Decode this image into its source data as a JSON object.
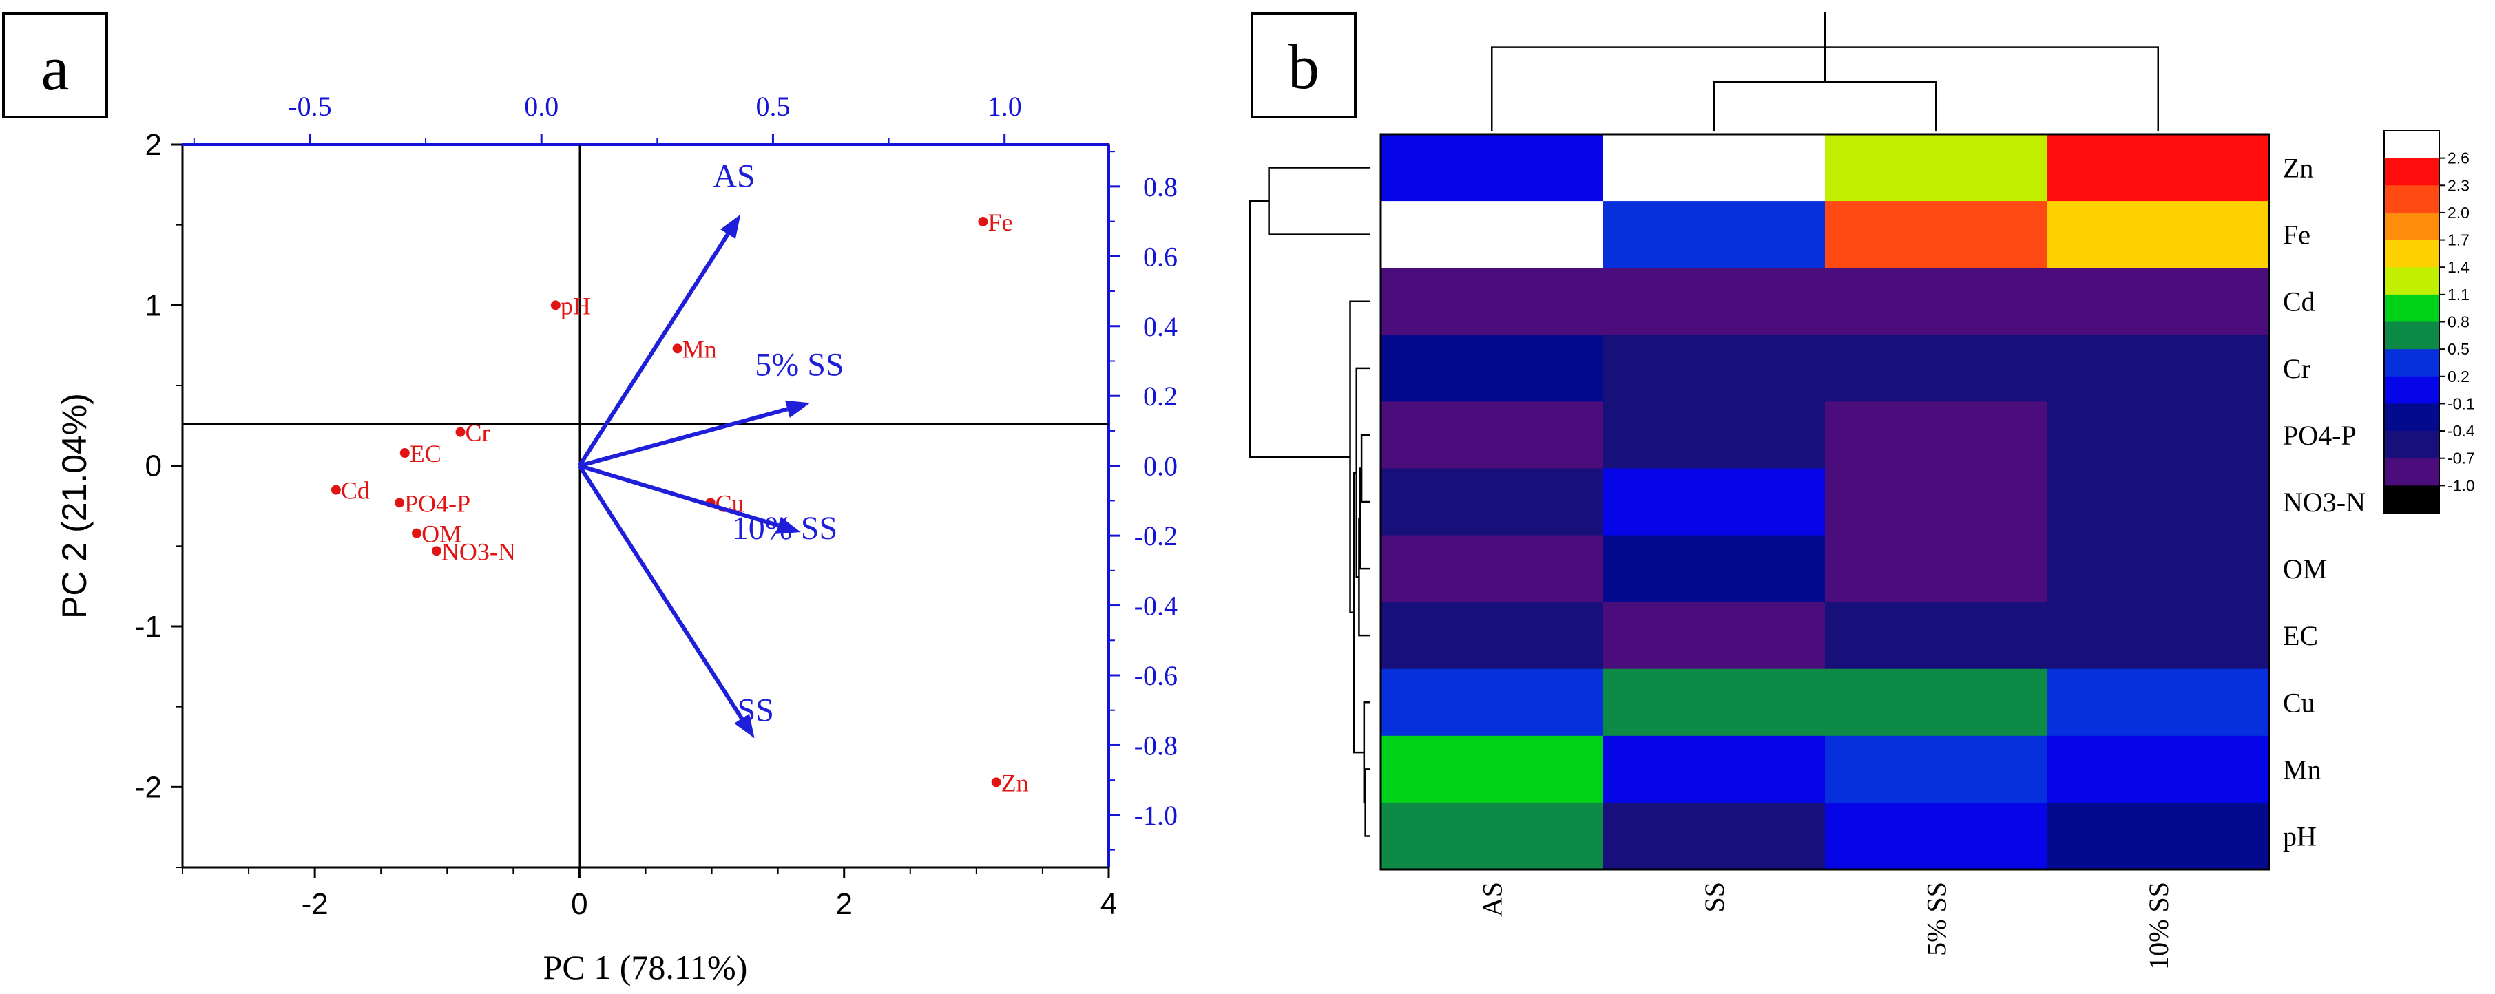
{
  "panel_a": {
    "label": "a",
    "xlabel": "PC 1 (78.11%)",
    "ylabel": "PC 2 (21.04%)"
  },
  "panel_b": {
    "label": "b"
  },
  "colors": {
    "axis": "#000000",
    "secondary_axis": "#1414d8",
    "score_points": "#e11414",
    "loading_arrows": "#1f1fd9"
  },
  "chart_data": [
    {
      "type": "scatter",
      "title": "a",
      "xlabel": "PC 1 (78.11%)",
      "ylabel": "PC 2 (21.04%)",
      "xlim": [
        -3,
        4
      ],
      "ylim": [
        -2.5,
        2
      ],
      "x_ticks": [
        -2,
        0,
        2,
        4
      ],
      "y_ticks": [
        -2,
        -1,
        0,
        1,
        2
      ],
      "secondary_x": {
        "lim": [
          -0.775,
          1.225
        ],
        "ticks": [
          -0.5,
          0.0,
          0.5,
          1.0
        ],
        "tick_labels": [
          "-0.5",
          "0.0",
          "0.5",
          "1.0"
        ]
      },
      "secondary_y": {
        "lim": [
          -1.15,
          0.92
        ],
        "ticks": [
          0.8,
          0.6,
          0.4,
          0.2,
          0.0,
          -0.2,
          -0.4,
          -0.6,
          -0.8,
          -1.0
        ],
        "tick_labels": [
          "0.8",
          "0.6",
          "0.4",
          "0.2",
          "0.0",
          "-0.2",
          "-0.4",
          "-0.6",
          "-0.8",
          "-1.0"
        ]
      },
      "scores": [
        {
          "label": "Fe",
          "x": 3.05,
          "y": 1.52
        },
        {
          "label": "pH",
          "x": -0.18,
          "y": 1.0
        },
        {
          "label": "Mn",
          "x": 0.74,
          "y": 0.73
        },
        {
          "label": "Cr",
          "x": -0.9,
          "y": 0.21
        },
        {
          "label": "EC",
          "x": -1.32,
          "y": 0.08
        },
        {
          "label": "Cd",
          "x": -1.84,
          "y": -0.15
        },
        {
          "label": "PO4-P",
          "x": -1.36,
          "y": -0.23
        },
        {
          "label": "OM",
          "x": -1.23,
          "y": -0.42
        },
        {
          "label": "NO3-N",
          "x": -1.08,
          "y": -0.53
        },
        {
          "label": "Cu",
          "x": 0.99,
          "y": -0.23
        },
        {
          "label": "Zn",
          "x": 3.15,
          "y": -1.97
        }
      ],
      "loadings": [
        {
          "label": "AS",
          "x": 0.43,
          "y": 0.72
        },
        {
          "label": "5% SS",
          "x": 0.58,
          "y": 0.18
        },
        {
          "label": "10% SS",
          "x": 0.56,
          "y": -0.19
        },
        {
          "label": "SS",
          "x": 0.46,
          "y": -0.78
        }
      ]
    },
    {
      "type": "heatmap",
      "title": "b",
      "columns": [
        "AS",
        "SS",
        "5% SS",
        "10% SS"
      ],
      "rows": [
        "Zn",
        "Fe",
        "Cd",
        "Cr",
        "PO4-P",
        "NO3-N",
        "OM",
        "EC",
        "Cu",
        "Mn",
        "pH"
      ],
      "values": [
        [
          0.1,
          2.6,
          1.2,
          2.3
        ],
        [
          2.6,
          0.2,
          2.0,
          1.6
        ],
        [
          -0.8,
          -0.8,
          -0.8,
          -0.8
        ],
        [
          -0.4,
          -0.6,
          -0.6,
          -0.6
        ],
        [
          -0.8,
          -0.6,
          -0.8,
          -0.6
        ],
        [
          -0.6,
          0.1,
          -0.8,
          -0.6
        ],
        [
          -0.8,
          -0.4,
          -0.8,
          -0.6
        ],
        [
          -0.6,
          -0.8,
          -0.6,
          -0.6
        ],
        [
          0.2,
          0.6,
          0.6,
          0.2
        ],
        [
          1.0,
          0.1,
          0.2,
          0.1
        ],
        [
          0.6,
          -0.6,
          0.1,
          -0.4
        ]
      ],
      "color_scale": {
        "ticks": [
          2.6,
          2.3,
          2.0,
          1.7,
          1.4,
          1.1,
          0.8,
          0.5,
          0.2,
          -0.1,
          -0.4,
          -0.7,
          -1.0
        ],
        "tick_labels": [
          "2.6",
          "2.3",
          "2.0",
          "1.7",
          "1.4",
          "1.1",
          "0.8",
          "0.5",
          "0.2",
          "-0.1",
          "-0.4",
          "-0.7",
          "-1.0"
        ],
        "bins": [
          {
            "from": 2.6,
            "color": "#ffffff"
          },
          {
            "from": 2.3,
            "color": "#ff0d0d"
          },
          {
            "from": 2.0,
            "color": "#ff4a14"
          },
          {
            "from": 1.7,
            "color": "#ff8c0a"
          },
          {
            "from": 1.4,
            "color": "#ffd000"
          },
          {
            "from": 1.1,
            "color": "#c2ef00"
          },
          {
            "from": 0.8,
            "color": "#00d21a"
          },
          {
            "from": 0.5,
            "color": "#0c8a46"
          },
          {
            "from": 0.2,
            "color": "#0530dc"
          },
          {
            "from": -0.1,
            "color": "#0505e8"
          },
          {
            "from": -0.4,
            "color": "#040a8e"
          },
          {
            "from": -0.7,
            "color": "#170f7a"
          },
          {
            "from": -1.0,
            "color": "#4c0d7c"
          },
          {
            "from": -99,
            "color": "#000000"
          }
        ]
      },
      "col_dendrogram": [
        {
          "a": 1,
          "b": 2,
          "h": 0.35
        },
        {
          "a": 0,
          "b": 3,
          "h": 0.6
        },
        {
          "a": 5,
          "b": 4,
          "h": 0.85
        }
      ],
      "row_dendrogram": [
        {
          "a": 9,
          "b": 10,
          "h": 0.04
        },
        {
          "a": 8,
          "b": 11,
          "h": 0.05
        },
        {
          "a": 4,
          "b": 5,
          "h": 0.07
        },
        {
          "a": 6,
          "b": 13,
          "h": 0.08
        },
        {
          "a": 7,
          "b": 14,
          "h": 0.09
        },
        {
          "a": 3,
          "b": 15,
          "h": 0.11
        },
        {
          "a": 12,
          "b": 16,
          "h": 0.13
        },
        {
          "a": 2,
          "b": 17,
          "h": 0.16
        },
        {
          "a": 0,
          "b": 1,
          "h": 0.8
        },
        {
          "a": 19,
          "b": 18,
          "h": 0.95
        }
      ]
    }
  ]
}
